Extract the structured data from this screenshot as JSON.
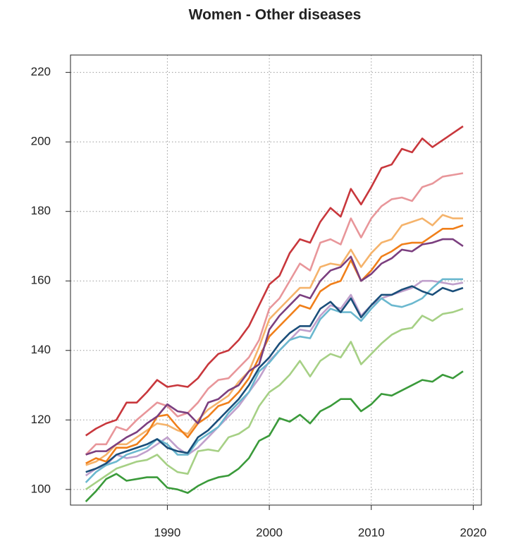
{
  "chart_data": {
    "type": "line",
    "title": "Women - Other diseases",
    "x": [
      1982,
      1983,
      1984,
      1985,
      1986,
      1987,
      1988,
      1989,
      1990,
      1991,
      1992,
      1993,
      1994,
      1995,
      1996,
      1997,
      1998,
      1999,
      2000,
      2001,
      2002,
      2003,
      2004,
      2005,
      2006,
      2007,
      2008,
      2009,
      2010,
      2011,
      2012,
      2013,
      2014,
      2015,
      2016,
      2017,
      2018,
      2019
    ],
    "xlim": [
      1980.5,
      2020.8
    ],
    "ylim": [
      95.5,
      225
    ],
    "xticks": [
      1990,
      2000,
      2010,
      2020
    ],
    "yticks": [
      100,
      120,
      140,
      160,
      180,
      200,
      220
    ],
    "grid": true,
    "series": [
      {
        "color": "#c8373c",
        "values": [
          115.5,
          117.5,
          119,
          120,
          125,
          125,
          128,
          131.5,
          129.5,
          130,
          129.5,
          132,
          136,
          139,
          140,
          143,
          147,
          153,
          159,
          161.5,
          168,
          172,
          171,
          177,
          181,
          178.5,
          186.5,
          182,
          187,
          192.5,
          193.5,
          198,
          197,
          201,
          198.5,
          200.5,
          202.5,
          204.5
        ]
      },
      {
        "color": "#e8969a",
        "values": [
          110,
          113,
          113,
          118,
          117,
          120,
          122.5,
          125,
          124,
          121,
          122,
          125,
          129,
          131.5,
          132,
          135,
          138,
          143,
          152,
          155,
          160,
          165,
          163,
          171,
          172,
          170.5,
          178,
          172.5,
          178,
          181.5,
          183.5,
          184,
          183,
          187,
          188,
          190,
          190.5,
          191
        ]
      },
      {
        "color": "#f5b36b",
        "values": [
          107,
          108,
          110,
          113,
          113,
          115,
          117,
          119,
          118.5,
          117,
          116,
          120,
          123,
          125,
          127,
          131,
          134,
          141,
          149,
          152,
          155,
          158,
          158,
          164,
          165,
          164.5,
          169,
          164,
          168,
          171,
          172,
          176,
          177,
          178,
          176,
          179,
          178,
          178
        ]
      },
      {
        "color": "#f07f1a",
        "values": [
          107.5,
          109,
          108,
          112,
          112,
          113,
          116,
          121,
          121.5,
          118,
          115,
          119,
          121,
          124,
          125,
          128,
          132,
          138,
          144,
          147,
          150,
          153,
          152,
          157,
          159,
          160,
          166,
          160,
          163,
          167,
          168.5,
          170.5,
          171,
          171,
          173,
          175,
          175,
          176
        ]
      },
      {
        "color": "#7b3f7f",
        "values": [
          110,
          111,
          111,
          113,
          115,
          116.5,
          119,
          121,
          124.5,
          122.5,
          122,
          119,
          125,
          126,
          128.5,
          130,
          134,
          136,
          146,
          150,
          153,
          156,
          155,
          160,
          163,
          164,
          167,
          160,
          162,
          165,
          166.5,
          169,
          168.5,
          170.5,
          171,
          172,
          172,
          170
        ]
      },
      {
        "color": "#c0a0cc",
        "values": [
          104,
          106,
          107,
          110,
          109,
          109.5,
          111,
          113,
          115,
          112,
          110,
          112,
          115,
          118,
          121,
          124,
          128,
          132,
          137,
          140,
          143,
          146,
          145.5,
          150,
          153,
          152,
          156,
          150,
          153,
          155,
          156,
          157,
          158,
          160,
          160,
          159.5,
          159,
          159.5
        ]
      },
      {
        "color": "#6bb8cf",
        "values": [
          102,
          105,
          107,
          108,
          110,
          111,
          112,
          114.5,
          113,
          110,
          110,
          114,
          116,
          118,
          122,
          125,
          128,
          134,
          136.5,
          140,
          143,
          144,
          143.5,
          149,
          152,
          151,
          151,
          148.5,
          152,
          155,
          153,
          152.5,
          153.5,
          155,
          158,
          160.5,
          160.5,
          160.5
        ]
      },
      {
        "color": "#1a4e7a",
        "values": [
          105,
          106,
          107.5,
          110,
          111,
          112,
          113,
          114.5,
          112,
          111,
          110.5,
          115,
          117,
          120,
          123,
          126,
          130,
          135,
          138,
          142,
          145,
          147,
          147,
          152,
          154,
          151,
          155,
          149.5,
          153,
          156,
          156,
          157.5,
          158.5,
          157,
          156,
          158,
          157,
          158
        ]
      },
      {
        "color": "#a6d085",
        "values": [
          100,
          102,
          104,
          106,
          107,
          108,
          108.5,
          110,
          107,
          105,
          104.5,
          111,
          111.5,
          111,
          115,
          116,
          118,
          124,
          128,
          130,
          133,
          137,
          132.5,
          137,
          139,
          138,
          142.5,
          136,
          139,
          142,
          144.5,
          146,
          146.5,
          150,
          148.5,
          150.5,
          151,
          152
        ]
      },
      {
        "color": "#3a9a3a",
        "values": [
          96.5,
          99.5,
          103,
          104.5,
          102.5,
          103,
          103.5,
          103.5,
          100.5,
          100,
          99,
          101,
          102.5,
          103.5,
          104,
          106,
          109,
          114,
          115.5,
          120.5,
          119.5,
          121.5,
          119,
          122.5,
          124,
          126,
          126,
          122.5,
          124.5,
          127.5,
          127,
          128.5,
          130,
          131.5,
          131,
          133,
          132,
          134
        ]
      }
    ]
  }
}
